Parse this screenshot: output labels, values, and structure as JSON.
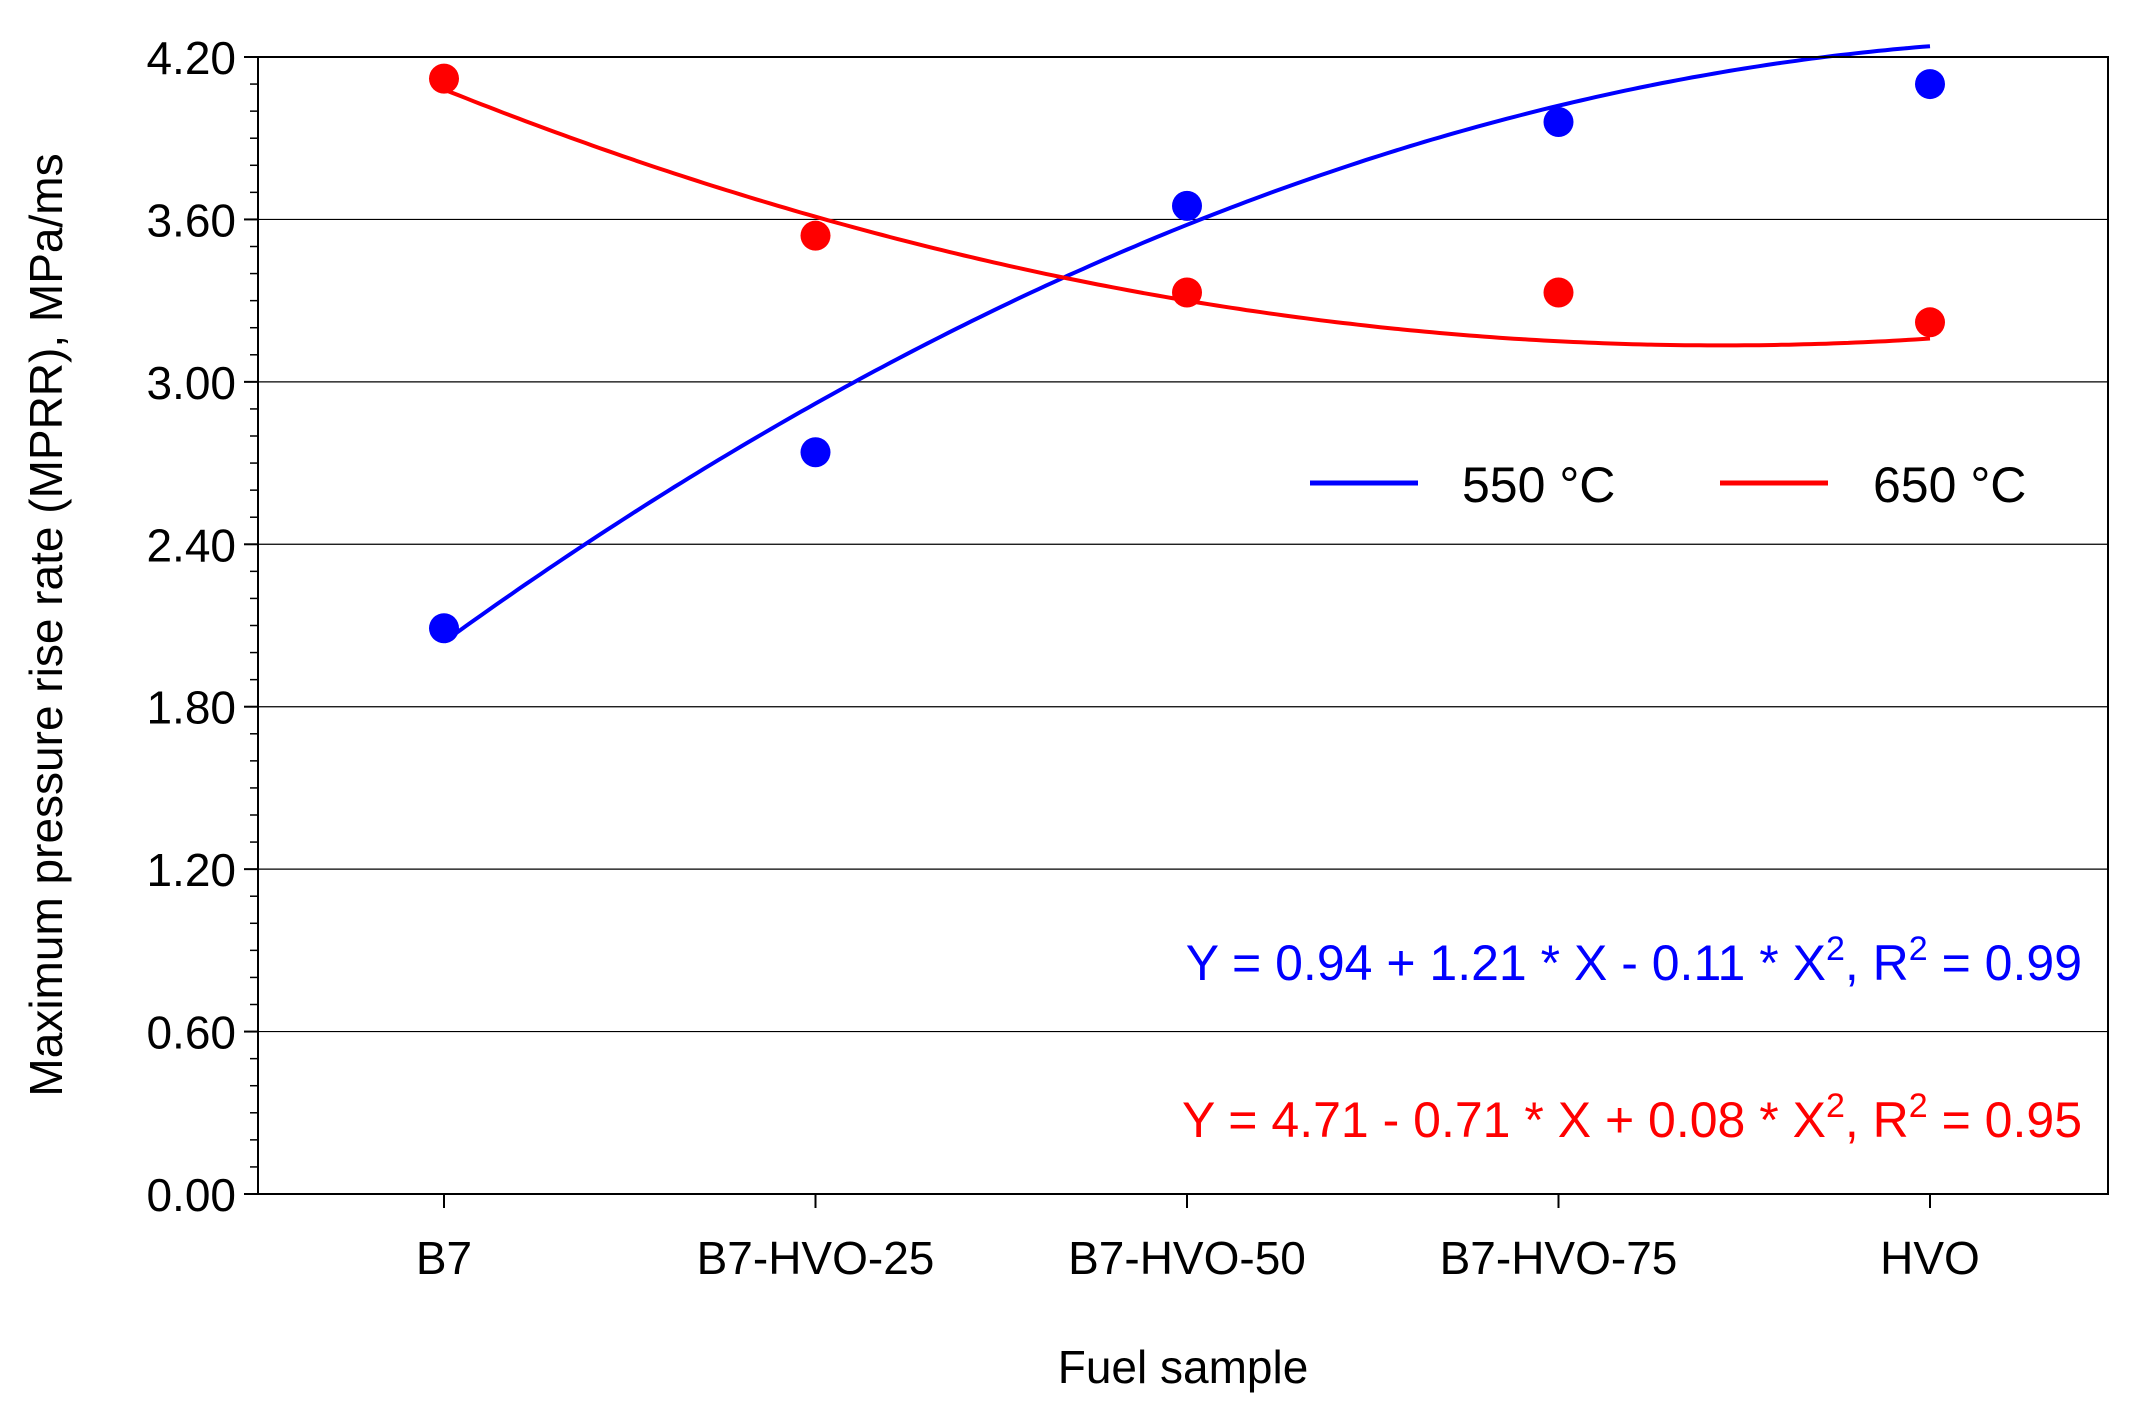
{
  "chart_data": {
    "type": "scatter",
    "title": "",
    "xlabel": "Fuel sample",
    "ylabel": "Maximum pressure rise rate (MPRR), MPa/ms",
    "categories": [
      "B7",
      "B7-HVO-25",
      "B7-HVO-50",
      "B7-HVO-75",
      "HVO"
    ],
    "ylim": [
      0,
      4.2
    ],
    "yticks": [
      "0.00",
      "0.60",
      "1.20",
      "1.80",
      "2.40",
      "3.00",
      "3.60",
      "4.20"
    ],
    "grid": true,
    "legend_position": "upper-right",
    "series": [
      {
        "name": "550 °C",
        "color": "#0000ff",
        "values": [
          2.09,
          2.74,
          3.65,
          3.96,
          4.1
        ],
        "fit": {
          "a": 0.94,
          "b": 1.21,
          "c": -0.11
        },
        "equation": {
          "prefix": "Y = 0.94 + 1.21 * X - 0.11 * X",
          "exp": "2",
          "mid": ", R",
          "rexp": "2",
          "suffix": " = 0.99"
        }
      },
      {
        "name": "650 °C",
        "color": "#ff0000",
        "values": [
          4.12,
          3.54,
          3.33,
          3.33,
          3.22
        ],
        "fit": {
          "a": 4.71,
          "b": -0.71,
          "c": 0.08
        },
        "equation": {
          "prefix": "Y = 4.71 - 0.71 * X + 0.08 * X",
          "exp": "2",
          "mid": ", R",
          "rexp": "2",
          "suffix": " = 0.95"
        }
      }
    ]
  }
}
